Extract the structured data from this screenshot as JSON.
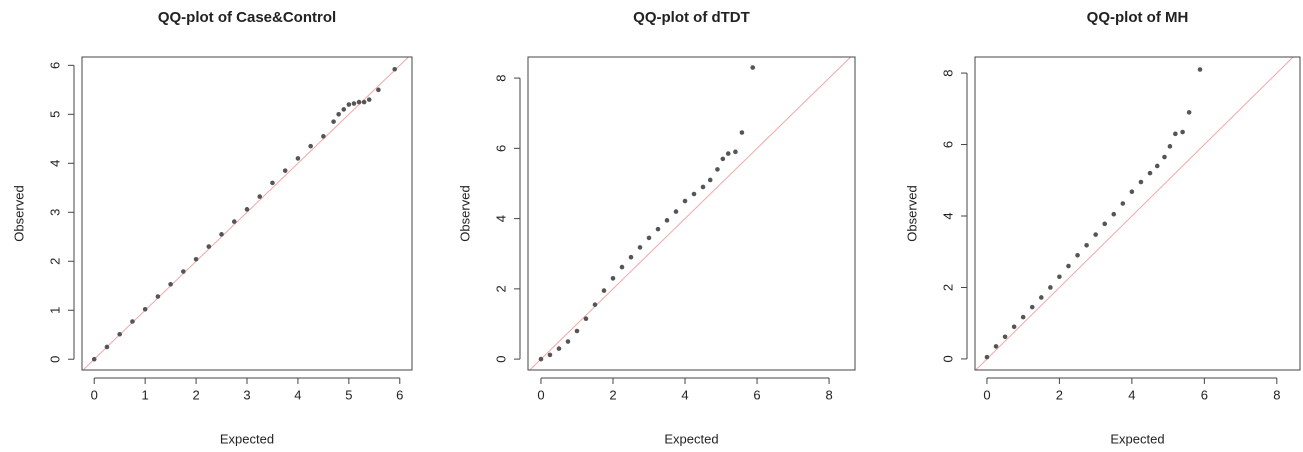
{
  "chart_data": [
    {
      "type": "scatter",
      "title": "QQ-plot of Case&Control",
      "x_label": "Expected",
      "y_label": "Observed",
      "x": [
        0,
        0.25,
        0.5,
        0.75,
        1,
        1.25,
        1.5,
        1.75,
        2,
        2.25,
        2.5,
        2.75,
        3,
        3.25,
        3.5,
        3.75,
        4,
        4.25,
        4.5,
        4.7,
        4.8,
        4.9,
        5.0,
        5.1,
        5.2,
        5.3,
        5.4,
        5.58,
        5.9
      ],
      "y": [
        0,
        0.25,
        0.51,
        0.77,
        1.02,
        1.28,
        1.53,
        1.79,
        2.04,
        2.3,
        2.55,
        2.81,
        3.06,
        3.32,
        3.6,
        3.85,
        4.1,
        4.35,
        4.55,
        4.85,
        5.0,
        5.1,
        5.2,
        5.22,
        5.25,
        5.25,
        5.3,
        5.5,
        5.92
      ],
      "xlim": [
        -0.24,
        6.24
      ],
      "ylim": [
        -0.22,
        6.17
      ],
      "xticks": [
        0,
        1,
        2,
        3,
        4,
        5,
        6
      ],
      "yticks": [
        0,
        1,
        2,
        3,
        4,
        5,
        6
      ],
      "color": "#555555",
      "reference_color": "#f0a8a8"
    },
    {
      "type": "scatter",
      "title": "QQ-plot of dTDT",
      "x_label": "Expected",
      "y_label": "Observed",
      "x": [
        0,
        0.25,
        0.5,
        0.75,
        1,
        1.25,
        1.5,
        1.75,
        2,
        2.25,
        2.5,
        2.75,
        3,
        3.25,
        3.5,
        3.75,
        4,
        4.25,
        4.5,
        4.7,
        4.9,
        5.05,
        5.2,
        5.4,
        5.58,
        5.88
      ],
      "y": [
        0,
        0.12,
        0.3,
        0.5,
        0.8,
        1.15,
        1.55,
        1.95,
        2.3,
        2.62,
        2.9,
        3.18,
        3.45,
        3.7,
        3.95,
        4.2,
        4.5,
        4.7,
        4.9,
        5.1,
        5.4,
        5.7,
        5.85,
        5.9,
        6.45,
        8.3
      ],
      "xlim": [
        -0.36,
        8.72
      ],
      "ylim": [
        -0.31,
        8.6
      ],
      "xticks": [
        0,
        2,
        4,
        6,
        8
      ],
      "yticks": [
        0,
        2,
        4,
        6,
        8
      ],
      "color": "#555555",
      "reference_color": "#f0a8a8"
    },
    {
      "type": "scatter",
      "title": "QQ-plot of MH",
      "x_label": "Expected",
      "y_label": "Observed",
      "x": [
        0,
        0.25,
        0.5,
        0.75,
        1,
        1.25,
        1.5,
        1.75,
        2,
        2.25,
        2.5,
        2.75,
        3,
        3.25,
        3.5,
        3.75,
        4,
        4.25,
        4.5,
        4.7,
        4.9,
        5.05,
        5.2,
        5.4,
        5.58,
        5.88
      ],
      "y": [
        0.05,
        0.35,
        0.62,
        0.9,
        1.17,
        1.45,
        1.72,
        2.0,
        2.3,
        2.6,
        2.9,
        3.18,
        3.48,
        3.78,
        4.05,
        4.35,
        4.68,
        4.95,
        5.2,
        5.4,
        5.65,
        5.95,
        6.3,
        6.35,
        6.9,
        8.1
      ],
      "xlim": [
        -0.33,
        8.64
      ],
      "ylim": [
        -0.31,
        8.45
      ],
      "xticks": [
        0,
        2,
        4,
        6,
        8
      ],
      "yticks": [
        0,
        2,
        4,
        6,
        8
      ],
      "color": "#555555",
      "reference_color": "#f0a8a8"
    }
  ]
}
